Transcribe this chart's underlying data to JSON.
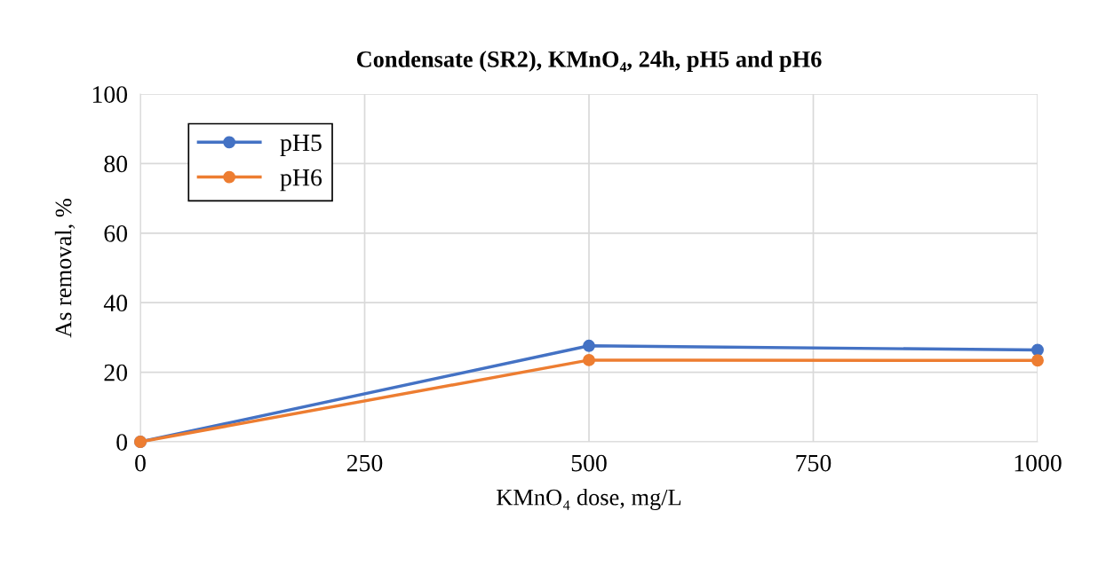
{
  "chart_data": {
    "type": "line",
    "title": "Condensate (SR2), KMnO₄, 24h, pH5 and pH6",
    "xlabel": "KMnO₄ dose, mg/L",
    "ylabel": "As removal, %",
    "x": [
      0,
      500,
      1000
    ],
    "series": [
      {
        "name": "pH5",
        "color": "#4472c4",
        "values": [
          0,
          27.6,
          26.4
        ]
      },
      {
        "name": "pH6",
        "color": "#ed7d31",
        "values": [
          0,
          23.5,
          23.4
        ]
      }
    ],
    "xlim": [
      0,
      1000
    ],
    "xticks": [
      0,
      250,
      500,
      750,
      1000
    ],
    "ylim": [
      0,
      100
    ],
    "yticks": [
      0,
      20,
      40,
      60,
      80,
      100
    ],
    "grid": true,
    "legend": "top left",
    "marker": "circle",
    "line_style": "solid"
  }
}
